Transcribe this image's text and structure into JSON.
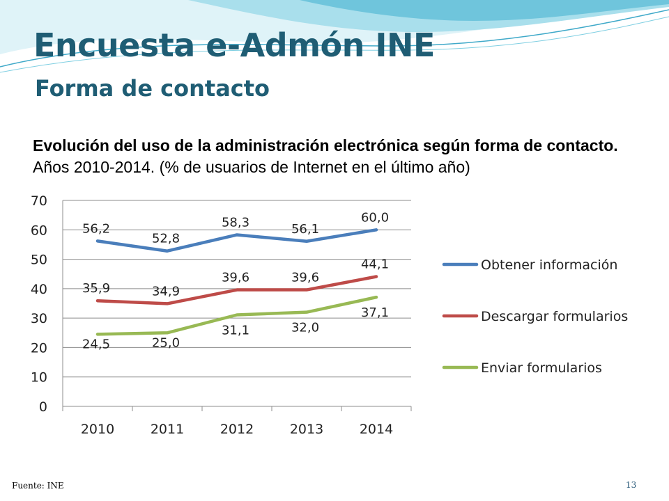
{
  "slide": {
    "title": "Encuesta e-Admón INE",
    "subtitle": "Forma de contacto",
    "footer_source": "Fuente: INE",
    "page_number": "13"
  },
  "colors": {
    "title": "#1f5d74",
    "banner_light": "#dff3f8",
    "banner_mid": "#a9dfec",
    "banner_dark": "#3fa9c9"
  },
  "chart_data": {
    "type": "line",
    "title_bold": "Evolución del uso de la administración electrónica según forma de contacto.",
    "title_rest": " Años 2010-2014. (% de usuarios de Internet en el último año)",
    "categories": [
      "2010",
      "2011",
      "2012",
      "2013",
      "2014"
    ],
    "ylim": [
      0,
      70
    ],
    "yticks": [
      0,
      10,
      20,
      30,
      40,
      50,
      60,
      70
    ],
    "grid": true,
    "legend_position": "right",
    "series": [
      {
        "name": "Obtener información",
        "color": "#4a7ebb",
        "values": [
          56.2,
          52.8,
          58.3,
          56.1,
          60.0
        ],
        "labels": [
          "56,2",
          "52,8",
          "58,3",
          "56,1",
          "60,0"
        ]
      },
      {
        "name": "Descargar formularios",
        "color": "#be4b48",
        "values": [
          35.9,
          34.9,
          39.6,
          39.6,
          44.1
        ],
        "labels": [
          "35,9",
          "34,9",
          "39,6",
          "39,6",
          "44,1"
        ]
      },
      {
        "name": "Enviar formularios",
        "color": "#98b954",
        "values": [
          24.5,
          25.0,
          31.1,
          32.0,
          37.1
        ],
        "labels": [
          "24,5",
          "25,0",
          "31,1",
          "32,0",
          "37,1"
        ]
      }
    ]
  }
}
